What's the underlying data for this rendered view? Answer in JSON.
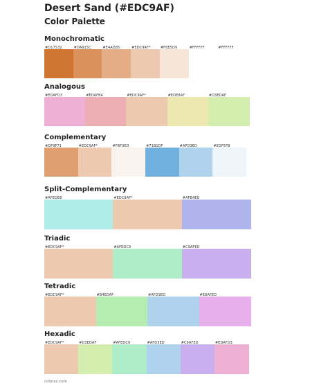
{
  "page": {
    "title": "Desert Sand (#EDC9AF)",
    "subtitle": "Color Palette",
    "footer": "colorxs.com"
  },
  "sections": [
    {
      "name": "Monochromatic",
      "colors": [
        {
          "label": "#D17532",
          "hex": "#D17532"
        },
        {
          "label": "#DA915C",
          "hex": "#DA915C"
        },
        {
          "label": "#E4AD85",
          "hex": "#E4AD85"
        },
        {
          "label": "#EDC9AF*",
          "hex": "#EDC9AF"
        },
        {
          "label": "#F6E5D9",
          "hex": "#F6E5D9"
        },
        {
          "label": "#FFFFFF",
          "hex": "#FFFFFF"
        },
        {
          "label": "#FFFFFF",
          "hex": "#FFFFFF"
        }
      ]
    },
    {
      "name": "Analogous",
      "colors": [
        {
          "label": "#EDAFD3",
          "hex": "#EDAFD3"
        },
        {
          "label": "#EDAFB4",
          "hex": "#EDAFB4"
        },
        {
          "label": "#EDC9AF*",
          "hex": "#EDC9AF"
        },
        {
          "label": "#EDE8AF",
          "hex": "#EDE8AF"
        },
        {
          "label": "#D3EDAF",
          "hex": "#D3EDAF"
        }
      ]
    },
    {
      "name": "Complementary",
      "colors": [
        {
          "label": "#DF9F71",
          "hex": "#DF9F71"
        },
        {
          "label": "#EDC9AF*",
          "hex": "#EDC9AF"
        },
        {
          "label": "#FBF3ED",
          "hex": "#FBF3ED"
        },
        {
          "label": "#71B1DF",
          "hex": "#71B1DF"
        },
        {
          "label": "#AFD3ED",
          "hex": "#AFD3ED"
        },
        {
          "label": "#EDF5FB",
          "hex": "#EDF5FB"
        }
      ]
    },
    {
      "name": "Split-Complementary",
      "colors": [
        {
          "label": "#AFEDE8",
          "hex": "#AFEDE8"
        },
        {
          "label": "#EDC9AF*",
          "hex": "#EDC9AF"
        },
        {
          "label": "#AFB4ED",
          "hex": "#AFB4ED"
        }
      ]
    },
    {
      "name": "Triadic",
      "colors": [
        {
          "label": "#EDC9AF*",
          "hex": "#EDC9AF"
        },
        {
          "label": "#AFEDC9",
          "hex": "#AFEDC9"
        },
        {
          "label": "#C9AFED",
          "hex": "#C9AFED"
        }
      ]
    },
    {
      "name": "Tetradic",
      "colors": [
        {
          "label": "#EDC9AF*",
          "hex": "#EDC9AF"
        },
        {
          "label": "#B4EDAF",
          "hex": "#B4EDAF"
        },
        {
          "label": "#AFD3ED",
          "hex": "#AFD3ED"
        },
        {
          "label": "#E8AFED",
          "hex": "#E8AFED"
        }
      ]
    },
    {
      "name": "Hexadic",
      "colors": [
        {
          "label": "#EDC9AF*",
          "hex": "#EDC9AF"
        },
        {
          "label": "#D3EDAF",
          "hex": "#D3EDAF"
        },
        {
          "label": "#AFEDC9",
          "hex": "#AFEDC9"
        },
        {
          "label": "#AFD3ED",
          "hex": "#AFD3ED"
        },
        {
          "label": "#C9AFED",
          "hex": "#C9AFED"
        },
        {
          "label": "#EDAFD3",
          "hex": "#EDAFD3"
        }
      ]
    }
  ]
}
